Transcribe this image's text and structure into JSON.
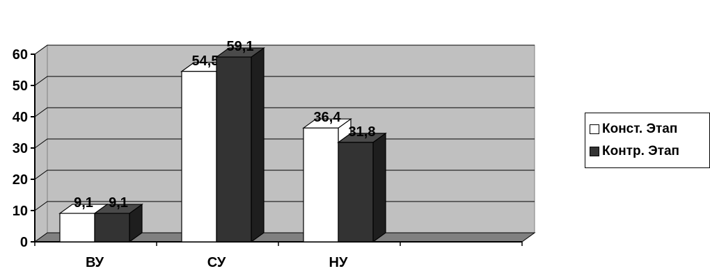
{
  "chart_data": {
    "type": "bar",
    "categories": [
      "ВУ",
      "СУ",
      "НУ"
    ],
    "series": [
      {
        "name": "Конст. Этап",
        "values": [
          9.1,
          54.5,
          36.4
        ],
        "labels": [
          "9,1",
          "54,5",
          "36,4"
        ],
        "color": "#ffffff"
      },
      {
        "name": "Контр. Этап",
        "values": [
          9.1,
          59.1,
          31.8
        ],
        "labels": [
          "9,1",
          "59,1",
          "31,8"
        ],
        "color": "#333333"
      }
    ],
    "y_ticks": [
      "0",
      "10",
      "20",
      "30",
      "40",
      "50",
      "60"
    ],
    "ylim": [
      0,
      60
    ],
    "grid": true,
    "three_d": true,
    "legend_position": "right",
    "wall_color": "#c0c0c0",
    "floor_color": "#808080",
    "title": "",
    "xlabel": "",
    "ylabel": ""
  }
}
